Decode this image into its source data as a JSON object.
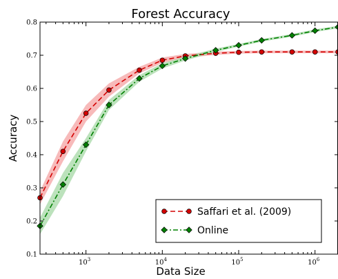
{
  "chart_data": {
    "type": "line",
    "title": "Forest Accuracy",
    "xlabel": "Data Size",
    "ylabel": "Accuracy",
    "xscale": "log",
    "xlim": [
      250,
      2000000
    ],
    "ylim": [
      0.1,
      0.8
    ],
    "yticks": [
      "0.1",
      "0.2",
      "0.3",
      "0.4",
      "0.5",
      "0.6",
      "0.7",
      "0.8"
    ],
    "xticks": [
      {
        "value": 1000,
        "base": "10",
        "exp": "3"
      },
      {
        "value": 10000,
        "base": "10",
        "exp": "4"
      },
      {
        "value": 100000,
        "base": "10",
        "exp": "5"
      },
      {
        "value": 1000000,
        "base": "10",
        "exp": "6"
      }
    ],
    "legend_position": "bottom-right",
    "grid": false,
    "series": [
      {
        "name": "Saffari et al. (2009)",
        "color": "#d40000",
        "fill": "#f4a3a3",
        "marker": "circle",
        "linestyle": "dashed",
        "x": [
          250,
          500,
          1000,
          2000,
          5000,
          10000,
          20000,
          50000,
          100000,
          200000,
          500000,
          1000000,
          2000000
        ],
        "y": [
          0.27,
          0.41,
          0.525,
          0.595,
          0.655,
          0.685,
          0.698,
          0.706,
          0.709,
          0.71,
          0.71,
          0.71,
          0.71
        ],
        "band": [
          0.02,
          0.03,
          0.025,
          0.02,
          0.01,
          0.008,
          0.006,
          0.005,
          0.004,
          0.004,
          0.004,
          0.004,
          0.004
        ]
      },
      {
        "name": "Online",
        "color": "#008000",
        "fill": "#a6d8a6",
        "marker": "diamond",
        "linestyle": "dashdot",
        "x": [
          250,
          500,
          1000,
          2000,
          5000,
          10000,
          20000,
          50000,
          100000,
          200000,
          500000,
          1000000,
          2000000
        ],
        "y": [
          0.185,
          0.31,
          0.43,
          0.55,
          0.63,
          0.668,
          0.69,
          0.715,
          0.73,
          0.745,
          0.76,
          0.774,
          0.785
        ],
        "band": [
          0.025,
          0.035,
          0.02,
          0.015,
          0.01,
          0.008,
          0.006,
          0.005,
          0.004,
          0.004,
          0.004,
          0.004,
          0.004
        ]
      }
    ]
  }
}
